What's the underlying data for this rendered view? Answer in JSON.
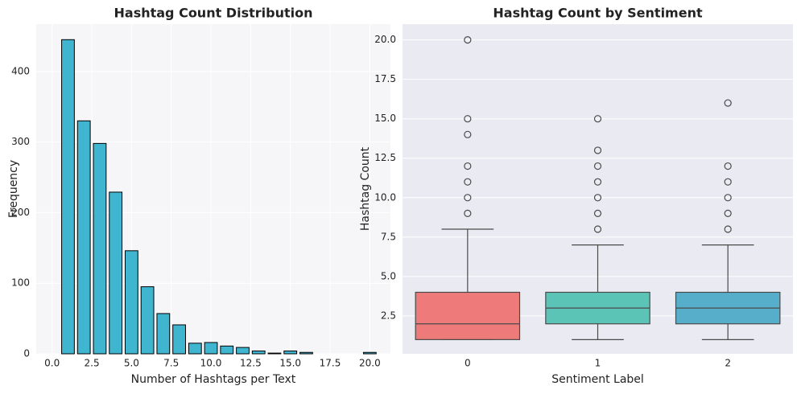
{
  "chart_data": [
    {
      "type": "histogram",
      "title": "Hashtag Count Distribution",
      "xlabel": "Number of Hashtags per Text",
      "ylabel": "Frequency",
      "bins": [
        0.5,
        1.5,
        2.5,
        3.5,
        4.5,
        5.5,
        6.5,
        7.5,
        8.5,
        9.5,
        10.5,
        11.5,
        12.5,
        13.5,
        14.5,
        15.5,
        16.5,
        17.5,
        18.5,
        19.5,
        20.5
      ],
      "values": [
        445,
        330,
        298,
        229,
        146,
        95,
        57,
        41,
        15,
        16,
        11,
        9,
        4,
        1,
        4,
        2,
        0,
        0,
        0,
        2
      ],
      "color": "#40b5cf",
      "edgecolor": "#000000",
      "xlim": [
        -1.0,
        21.3
      ],
      "xticks": [
        {
          "value": 0,
          "label": "0.0"
        },
        {
          "value": 2.5,
          "label": "2.5"
        },
        {
          "value": 5,
          "label": "5.0"
        },
        {
          "value": 7.5,
          "label": "7.5"
        },
        {
          "value": 10,
          "label": "10.0"
        },
        {
          "value": 12.5,
          "label": "12.5"
        },
        {
          "value": 15,
          "label": "15.0"
        },
        {
          "value": 17.5,
          "label": "17.5"
        },
        {
          "value": 20,
          "label": "20.0"
        }
      ],
      "ylim": [
        0,
        467
      ],
      "yticks": [
        0,
        100,
        200,
        300,
        400
      ],
      "grid": true
    },
    {
      "type": "box",
      "title": "Hashtag Count by Sentiment",
      "xlabel": "Sentiment Label",
      "ylabel": "Hashtag Count",
      "categories": [
        "0",
        "1",
        "2"
      ],
      "boxes": [
        {
          "whislo": 1,
          "q1": 1,
          "med": 2,
          "q3": 4,
          "whishi": 8,
          "fliers": [
            9,
            10,
            11,
            12,
            14,
            15,
            20
          ]
        },
        {
          "whislo": 1,
          "q1": 2,
          "med": 3,
          "q3": 4,
          "whishi": 7,
          "fliers": [
            8,
            9,
            10,
            11,
            12,
            13,
            15
          ]
        },
        {
          "whislo": 1,
          "q1": 2,
          "med": 3,
          "q3": 4,
          "whishi": 7,
          "fliers": [
            8,
            9,
            10,
            11,
            12,
            16
          ]
        }
      ],
      "colors": [
        "#ef7a7a",
        "#5cc3b7",
        "#56aecb"
      ],
      "ylim": [
        0.1,
        21.0
      ],
      "yticks": [
        {
          "value": 2.5,
          "label": "2.5"
        },
        {
          "value": 5,
          "label": "5.0"
        },
        {
          "value": 7.5,
          "label": "7.5"
        },
        {
          "value": 10,
          "label": "10.0"
        },
        {
          "value": 12.5,
          "label": "12.5"
        },
        {
          "value": 15,
          "label": "15.0"
        },
        {
          "value": 17.5,
          "label": "17.5"
        },
        {
          "value": 20,
          "label": "20.0"
        }
      ],
      "grid": true
    }
  ]
}
